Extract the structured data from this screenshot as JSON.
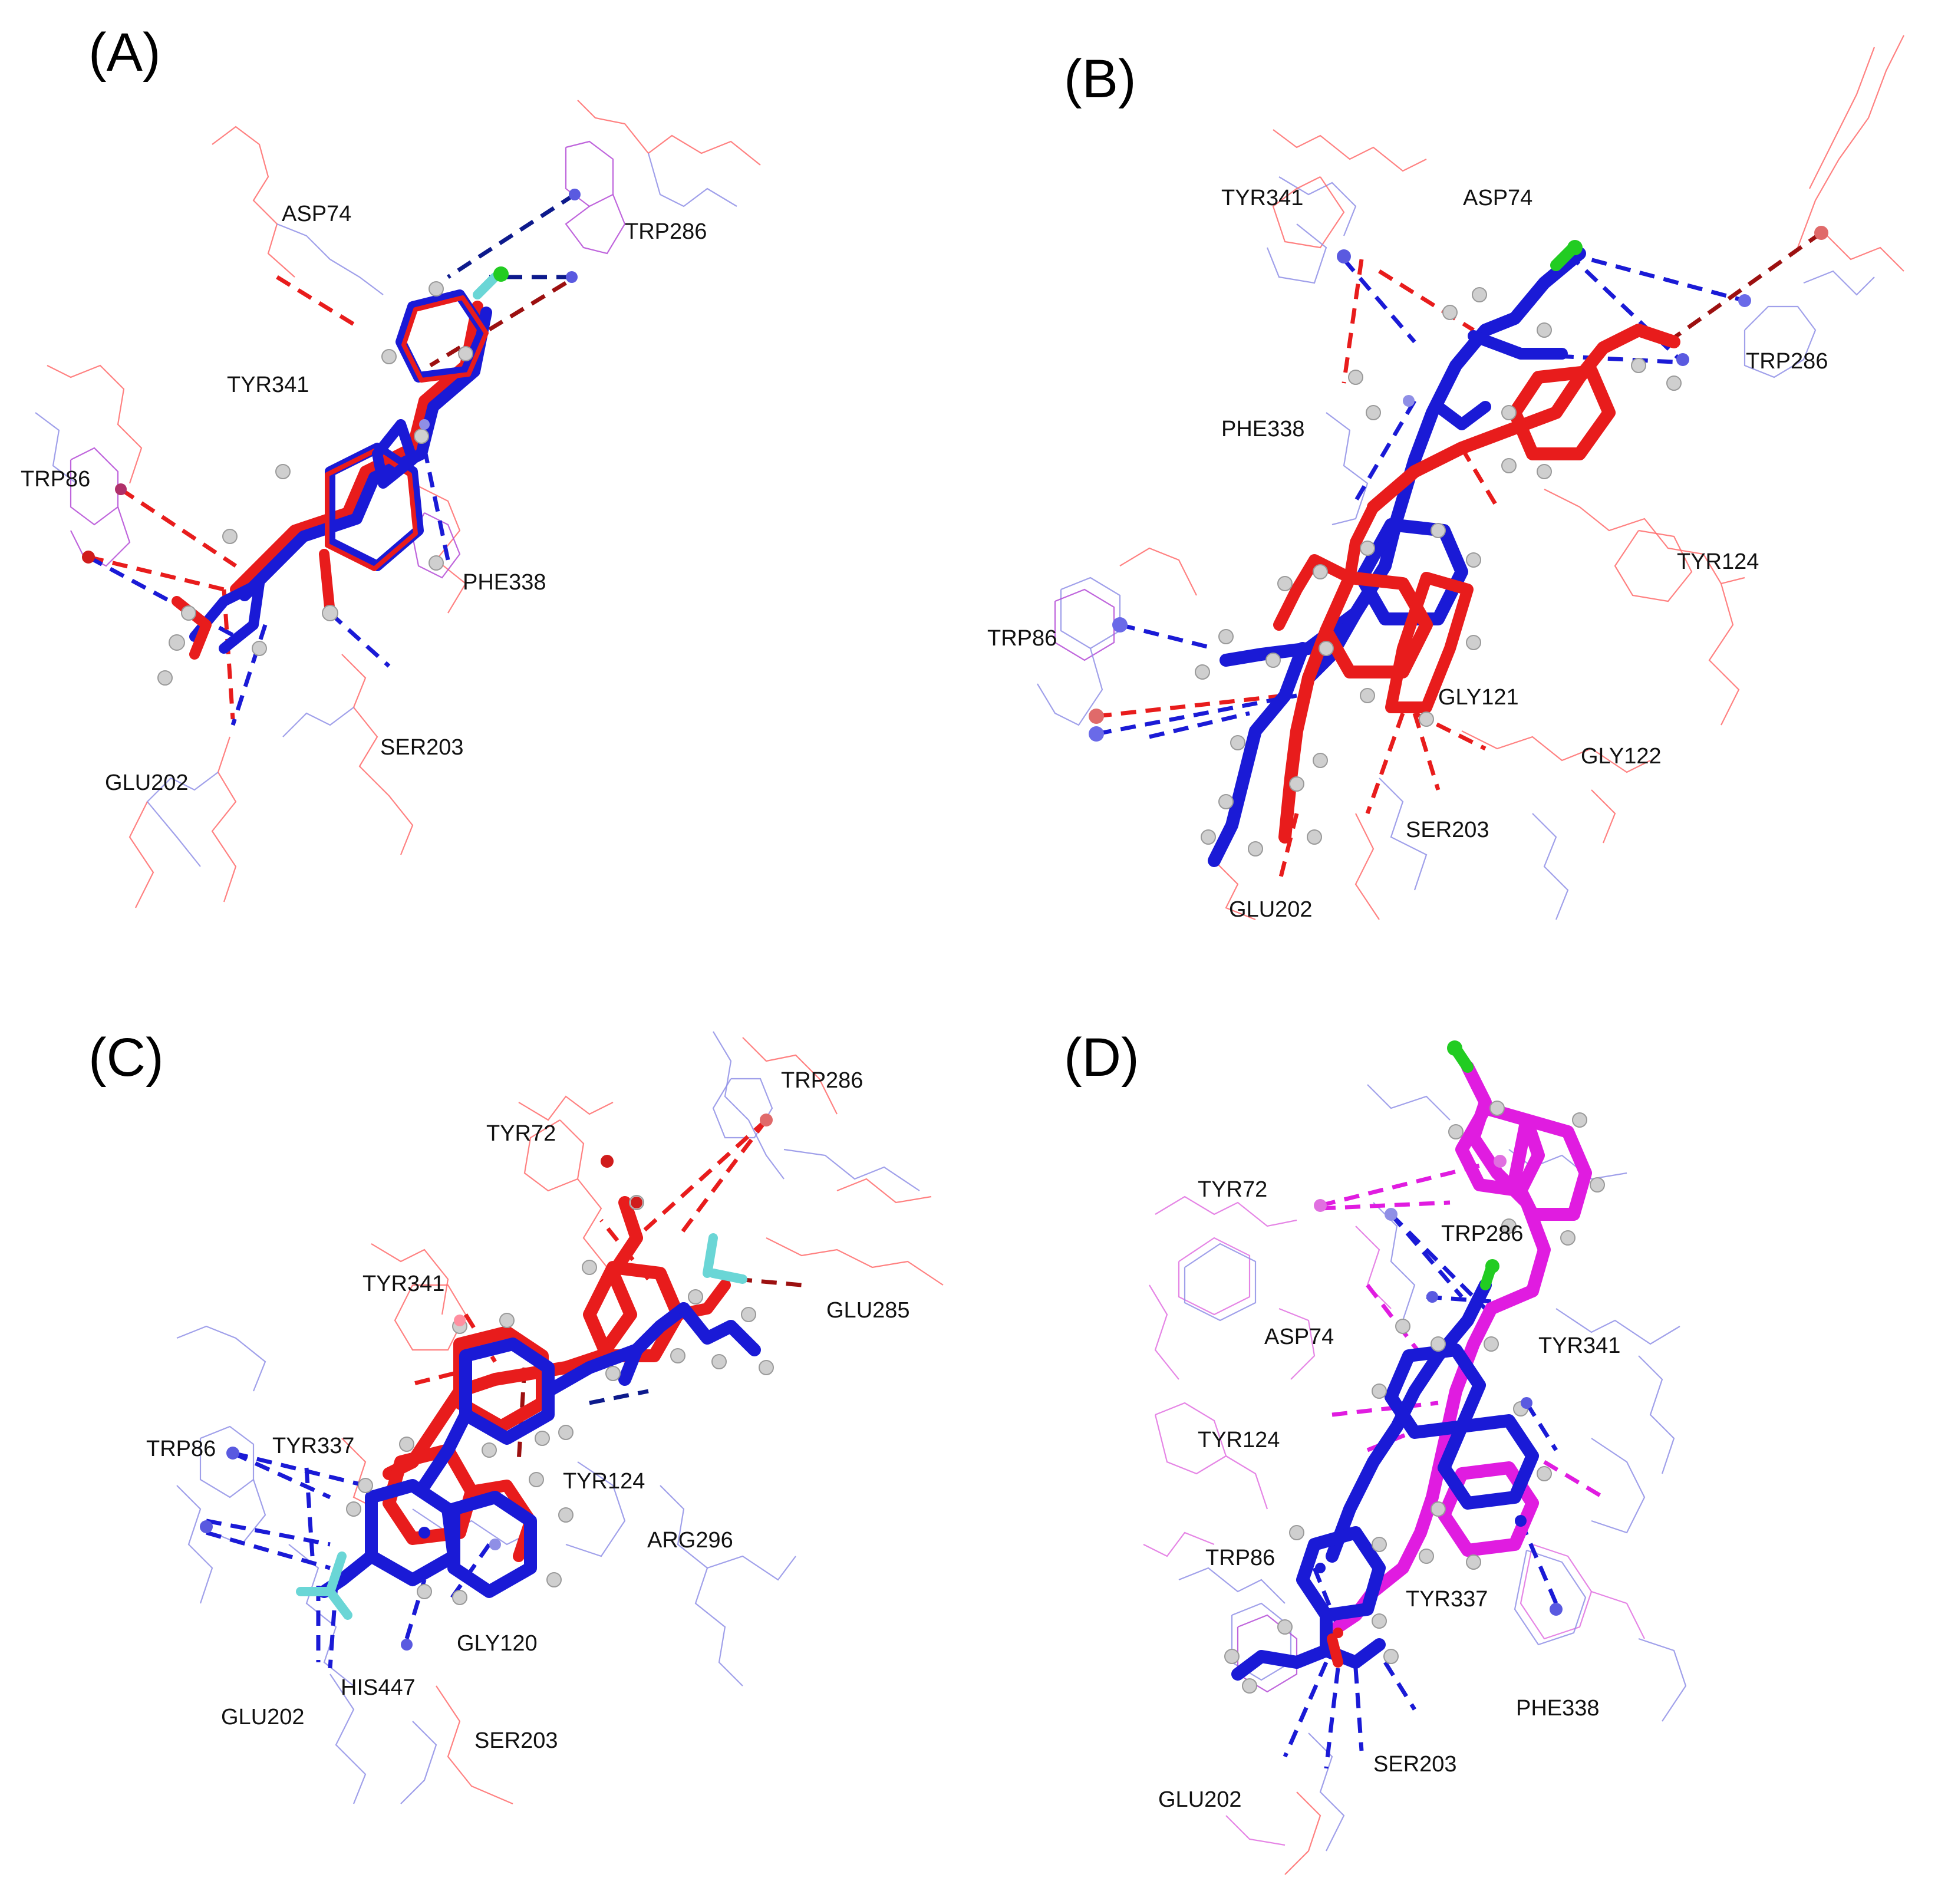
{
  "figure": {
    "colors": {
      "red": "#e81c1c",
      "blue": "#1a1ad6",
      "navy": "#0d1a8c",
      "darkred": "#9c1010",
      "magenta": "#e01ce0",
      "lightblue": "#8f8fe6",
      "pink": "#ff8fa0",
      "green": "#22cc22",
      "cyan": "#6ad6d6",
      "hydrogen": "#d0d0d0"
    },
    "panels": [
      {
        "letter": "(A)",
        "residues": [
          "ASP74",
          "TRP286",
          "TYR341",
          "TRP86",
          "PHE338",
          "SER203",
          "GLU202"
        ]
      },
      {
        "letter": "(B)",
        "residues": [
          "TYR341",
          "ASP74",
          "TRP286",
          "PHE338",
          "TYR124",
          "TRP86",
          "GLY121",
          "GLY122",
          "SER203",
          "GLU202"
        ]
      },
      {
        "letter": "(C)",
        "residues": [
          "TRP286",
          "TYR72",
          "TYR341",
          "GLU285",
          "TRP86",
          "TYR337",
          "TYR124",
          "ARG296",
          "GLY120",
          "HIS447",
          "GLU202",
          "SER203"
        ]
      },
      {
        "letter": "(D)",
        "residues": [
          "TYR72",
          "TRP286",
          "ASP74",
          "TYR341",
          "TYR124",
          "TRP86",
          "TYR337",
          "PHE338",
          "SER203",
          "GLU202"
        ]
      }
    ]
  }
}
